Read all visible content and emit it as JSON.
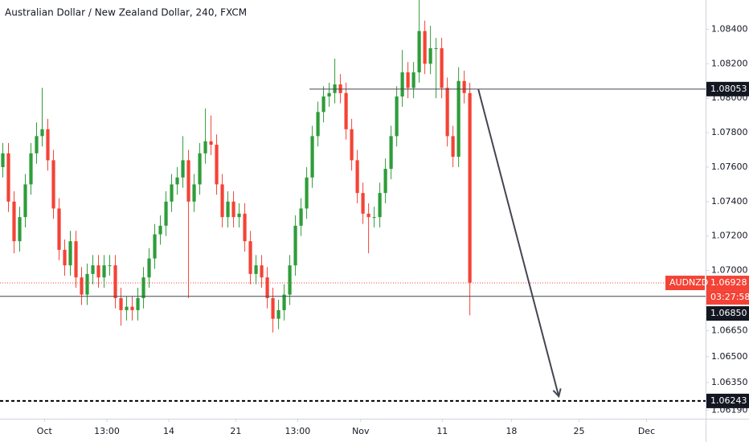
{
  "chart_data": {
    "type": "candlestick",
    "title": "Australian Dollar / New Zealand Dollar, 240, FXCM",
    "up_color": "#2e9d3a",
    "down_color": "#f44336",
    "open": [
      1.076,
      1.0768,
      1.074,
      1.0717,
      1.0731,
      1.075,
      1.0768,
      1.0778,
      1.0782,
      1.0764,
      1.0736,
      1.0712,
      1.0703,
      1.0717,
      1.0696,
      1.0686,
      1.0698,
      1.0703,
      1.0696,
      1.0703,
      1.0703,
      1.0684,
      1.0677,
      1.0679,
      1.0677,
      1.0684,
      1.0696,
      1.0707,
      1.0721,
      1.0726,
      1.074,
      1.075,
      1.0754,
      1.0764,
      1.074,
      1.075,
      1.0768,
      1.0775,
      1.0773,
      1.075,
      1.0731,
      1.074,
      1.0731,
      1.0733,
      1.0717,
      1.0698,
      1.0703,
      1.0696,
      1.0684,
      1.0672,
      1.0677,
      1.0686,
      1.0703,
      1.0726,
      1.0736,
      1.0754,
      1.0778,
      1.0792,
      1.0801,
      1.0803,
      1.0808,
      1.0803,
      1.0782,
      1.0764,
      1.0745,
      1.0733,
      1.0731,
      1.0731,
      1.0745,
      1.0759,
      1.0778,
      1.0801,
      1.0815,
      1.0806,
      1.0815,
      1.0839,
      1.082,
      1.0829,
      1.0829,
      1.0806,
      1.0778,
      1.0766,
      1.081,
      1.0803
    ],
    "high": [
      1.0774,
      1.0774,
      1.0746,
      1.0737,
      1.0756,
      1.0774,
      1.0786,
      1.0806,
      1.0788,
      1.077,
      1.0742,
      1.0718,
      1.0723,
      1.0723,
      1.0702,
      1.0704,
      1.0709,
      1.0709,
      1.0709,
      1.0709,
      1.0709,
      1.069,
      1.0685,
      1.0685,
      1.069,
      1.0702,
      1.0713,
      1.0727,
      1.0732,
      1.0746,
      1.0756,
      1.076,
      1.0778,
      1.077,
      1.0756,
      1.0774,
      1.0794,
      1.079,
      1.0779,
      1.0756,
      1.0746,
      1.0746,
      1.0739,
      1.0739,
      1.0723,
      1.0709,
      1.0709,
      1.0702,
      1.069,
      1.0683,
      1.0692,
      1.0709,
      1.0732,
      1.0742,
      1.076,
      1.0784,
      1.0798,
      1.0807,
      1.0809,
      1.0823,
      1.0814,
      1.0809,
      1.0788,
      1.077,
      1.0751,
      1.0739,
      1.0737,
      1.0751,
      1.0765,
      1.0784,
      1.0807,
      1.0828,
      1.0821,
      1.0821,
      1.0857,
      1.0845,
      1.0842,
      1.0835,
      1.0835,
      1.0812,
      1.0784,
      1.0818,
      1.0816,
      1.0809
    ],
    "low": [
      1.0754,
      1.0734,
      1.071,
      1.0711,
      1.0725,
      1.0744,
      1.0762,
      1.0772,
      1.0758,
      1.073,
      1.0706,
      1.0697,
      1.0697,
      1.069,
      1.068,
      1.068,
      1.0692,
      1.069,
      1.069,
      1.0697,
      1.0678,
      1.0668,
      1.0671,
      1.0671,
      1.0671,
      1.0678,
      1.069,
      1.0701,
      1.0715,
      1.072,
      1.0734,
      1.0744,
      1.0748,
      1.0684,
      1.0734,
      1.0744,
      1.0762,
      1.0767,
      1.0744,
      1.0725,
      1.0725,
      1.0725,
      1.0725,
      1.0711,
      1.0692,
      1.0692,
      1.069,
      1.0678,
      1.0664,
      1.0666,
      1.0671,
      1.068,
      1.0697,
      1.072,
      1.073,
      1.0748,
      1.0772,
      1.0786,
      1.0795,
      1.0797,
      1.0797,
      1.0776,
      1.0758,
      1.0739,
      1.0727,
      1.071,
      1.0725,
      1.0725,
      1.0739,
      1.0753,
      1.0772,
      1.0795,
      1.08,
      1.08,
      1.0809,
      1.0814,
      1.0814,
      1.08,
      1.08,
      1.0772,
      1.076,
      1.076,
      1.0797,
      1.0674
    ],
    "close": [
      1.0768,
      1.074,
      1.0717,
      1.0731,
      1.075,
      1.0768,
      1.0778,
      1.0782,
      1.0764,
      1.0736,
      1.0712,
      1.0703,
      1.0717,
      1.0696,
      1.0686,
      1.0698,
      1.0703,
      1.0696,
      1.0703,
      1.0703,
      1.0684,
      1.0677,
      1.0679,
      1.0677,
      1.0684,
      1.0696,
      1.0707,
      1.0721,
      1.0726,
      1.074,
      1.075,
      1.0754,
      1.0764,
      1.074,
      1.075,
      1.0768,
      1.0775,
      1.0773,
      1.075,
      1.0731,
      1.074,
      1.0731,
      1.0733,
      1.0717,
      1.0698,
      1.0703,
      1.0696,
      1.0684,
      1.0672,
      1.0677,
      1.0686,
      1.0703,
      1.0726,
      1.0736,
      1.0754,
      1.0778,
      1.0792,
      1.0801,
      1.0803,
      1.0808,
      1.0803,
      1.0782,
      1.0764,
      1.0745,
      1.0733,
      1.0731,
      1.0731,
      1.0745,
      1.0759,
      1.0778,
      1.0801,
      1.0815,
      1.0806,
      1.0815,
      1.0839,
      1.082,
      1.0829,
      1.0829,
      1.0806,
      1.0778,
      1.0766,
      1.081,
      1.0803,
      1.0693
    ],
    "xlim": [
      -0.5,
      124.9
    ],
    "xticks": [
      {
        "value": 7.4,
        "label": "Oct"
      },
      {
        "value": 18.5,
        "label": "13:00"
      },
      {
        "value": 29.5,
        "label": "14"
      },
      {
        "value": 41.4,
        "label": "21"
      },
      {
        "value": 52.4,
        "label": "13:00"
      },
      {
        "value": 63.6,
        "label": "Nov"
      },
      {
        "value": 78.1,
        "label": "11"
      },
      {
        "value": 90.4,
        "label": "18"
      },
      {
        "value": 102.4,
        "label": "25"
      },
      {
        "value": 114.4,
        "label": "Dec"
      }
    ],
    "ylim": [
      1.0614,
      1.0857
    ],
    "yticks": [
      {
        "value": 1.084,
        "label": "1.08400"
      },
      {
        "value": 1.082,
        "label": "1.08200"
      },
      {
        "value": 1.08,
        "label": "1.08000"
      },
      {
        "value": 1.078,
        "label": "1.07800"
      },
      {
        "value": 1.076,
        "label": "1.07600"
      },
      {
        "value": 1.074,
        "label": "1.07400"
      },
      {
        "value": 1.072,
        "label": "1.07200"
      },
      {
        "value": 1.07,
        "label": "1.07000"
      },
      {
        "value": 1.0665,
        "label": "1.06650"
      },
      {
        "value": 1.065,
        "label": "1.06500"
      },
      {
        "value": 1.0635,
        "label": "1.06350"
      },
      {
        "value": 1.0619,
        "label": "1.06190"
      }
    ],
    "levels": [
      {
        "value": 1.08053,
        "start": 54.5,
        "style": "solid"
      },
      {
        "value": 1.0685,
        "label": "1.06850",
        "start": -0.5,
        "style": "solid"
      },
      {
        "value": 1.06243,
        "start": -0.5,
        "style": "dashed"
      }
    ],
    "last_price": {
      "value": 1.06928,
      "symbol": "AUDNZD",
      "countdown": "03:27:58",
      "color": "#f44336"
    },
    "arrow": {
      "x": [
        84.5,
        98.8
      ],
      "y": [
        1.08053,
        1.0627
      ],
      "color": "#434651"
    }
  }
}
